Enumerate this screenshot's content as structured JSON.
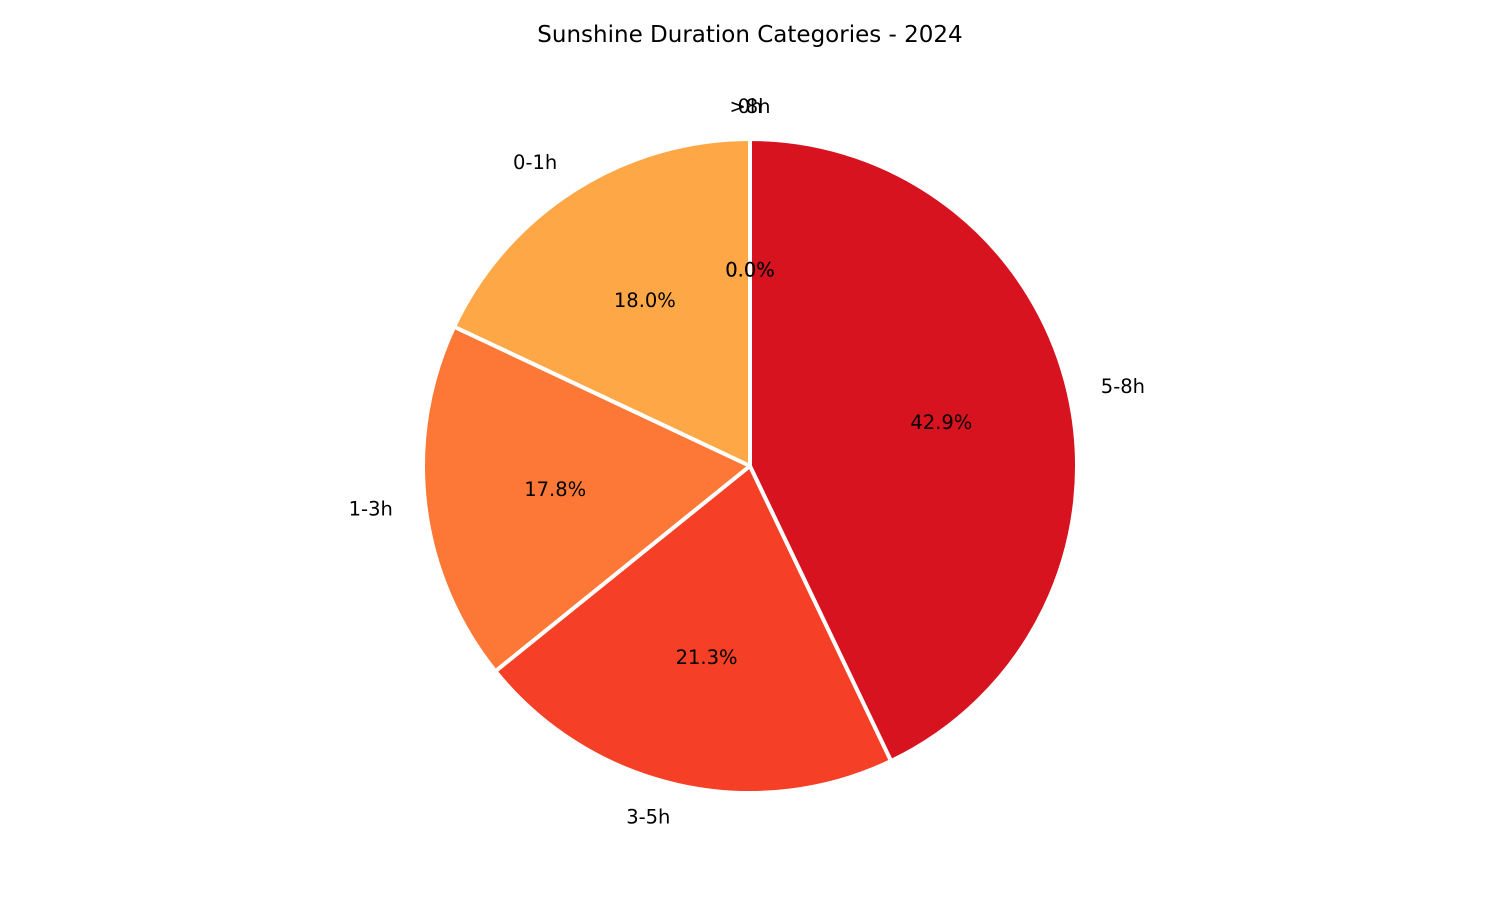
{
  "chart_data": {
    "type": "pie",
    "title": "Sunshine Duration Categories - 2024",
    "categories": [
      "0h",
      "0-1h",
      "1-3h",
      "3-5h",
      "5-8h",
      ">8h"
    ],
    "values": [
      0.0,
      18.0,
      17.8,
      21.3,
      42.9,
      0.0
    ],
    "value_labels": [
      "0.0%",
      "18.0%",
      "17.8%",
      "21.3%",
      "42.9%",
      "0.0%"
    ],
    "colors": [
      "#fee391",
      "#fea746",
      "#fd7837",
      "#f53f26",
      "#d7131f",
      "#b10026"
    ],
    "start_angle_deg": 90,
    "direction": "counterclockwise",
    "legend": "none"
  }
}
